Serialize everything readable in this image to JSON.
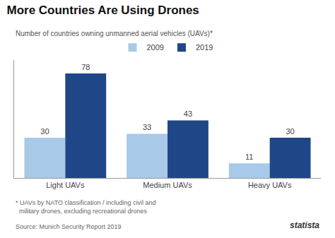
{
  "chart_data": {
    "type": "bar",
    "title": "More Countries Are Using Drones",
    "subtitle": "Number of countries owning unmanned aerial vehicles (UAVs)*",
    "categories": [
      "Light UAVs",
      "Medium UAVs",
      "Heavy UAVs"
    ],
    "series": [
      {
        "name": "2009",
        "color": "#a8c9e8",
        "values": [
          30,
          33,
          11
        ]
      },
      {
        "name": "2019",
        "color": "#1f4788",
        "values": [
          78,
          43,
          30
        ]
      }
    ],
    "ylim": [
      0,
      88
    ],
    "tick_labels": "x",
    "data_labels": true,
    "grid": false,
    "legend": "top",
    "annotations": [
      "* UAVs by NATO classification / including civil and\n  military drones, excluding recreational drones",
      "Source: Munich Security Report 2019",
      "statista"
    ]
  }
}
